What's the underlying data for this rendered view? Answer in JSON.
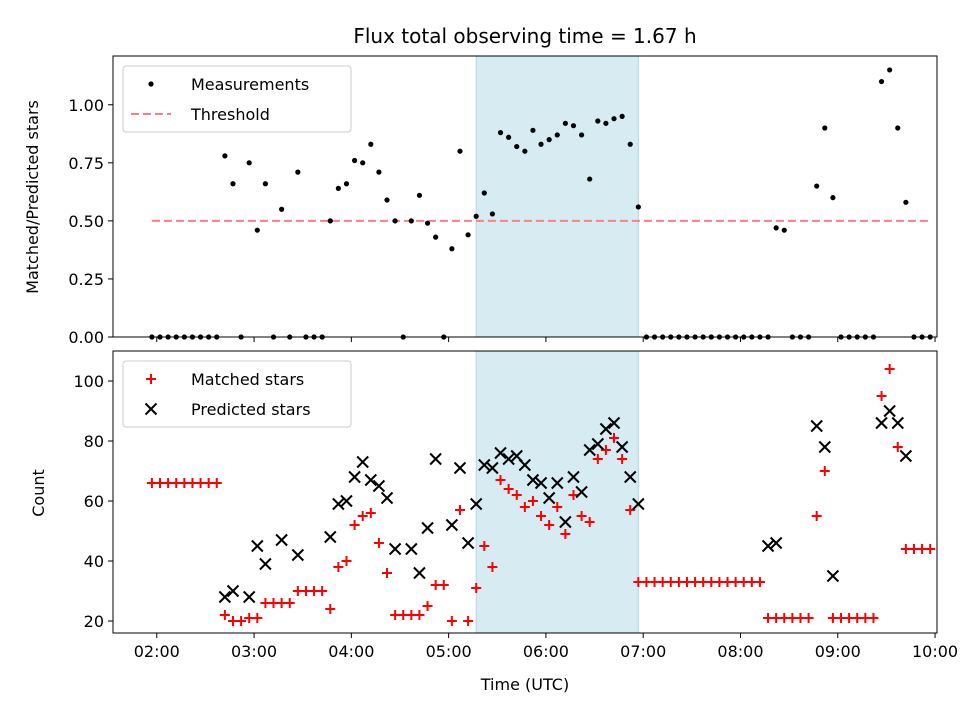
{
  "chart_data": [
    {
      "type": "scatter",
      "title": "Flux total observing time = 1.67 h",
      "xlabel": "",
      "ylabel": "Matched/Predicted stars",
      "ylim": [
        0,
        1.21
      ],
      "xlim_hours": [
        1.55,
        10.02
      ],
      "yticks": [
        "0.00",
        "0.25",
        "0.50",
        "0.75",
        "1.00"
      ],
      "highlight_span": {
        "start": "05:17",
        "end": "06:57",
        "color": "#add8e6"
      },
      "legend": {
        "placement": "upper left",
        "entries": [
          "Measurements",
          "Threshold"
        ]
      },
      "threshold": {
        "name": "Threshold",
        "y": 0.5,
        "x_start": "01:57",
        "x_end": "09:57",
        "color": "#ff7f7f",
        "style": "dashed"
      },
      "series": [
        {
          "name": "Measurements",
          "color": "#000000",
          "marker": "dot",
          "points": [
            [
              "01:57",
              0
            ],
            [
              "02:02",
              0
            ],
            [
              "02:07",
              0
            ],
            [
              "02:12",
              0
            ],
            [
              "02:17",
              0
            ],
            [
              "02:22",
              0
            ],
            [
              "02:27",
              0
            ],
            [
              "02:32",
              0
            ],
            [
              "02:37",
              0
            ],
            [
              "02:42",
              0.78
            ],
            [
              "02:47",
              0.66
            ],
            [
              "02:52",
              0
            ],
            [
              "02:57",
              0.75
            ],
            [
              "03:02",
              0.46
            ],
            [
              "03:07",
              0.66
            ],
            [
              "03:12",
              0
            ],
            [
              "03:17",
              0.55
            ],
            [
              "03:22",
              0
            ],
            [
              "03:27",
              0.71
            ],
            [
              "03:32",
              0
            ],
            [
              "03:37",
              0
            ],
            [
              "03:42",
              0
            ],
            [
              "03:47",
              0.5
            ],
            [
              "03:52",
              0.64
            ],
            [
              "03:57",
              0.66
            ],
            [
              "04:02",
              0.76
            ],
            [
              "04:07",
              0.75
            ],
            [
              "04:12",
              0.83
            ],
            [
              "04:17",
              0.71
            ],
            [
              "04:22",
              0.59
            ],
            [
              "04:27",
              0.5
            ],
            [
              "04:32",
              0
            ],
            [
              "04:37",
              0.5
            ],
            [
              "04:42",
              0.61
            ],
            [
              "04:47",
              0.49
            ],
            [
              "04:52",
              0.43
            ],
            [
              "04:57",
              0
            ],
            [
              "05:02",
              0.38
            ],
            [
              "05:07",
              0.8
            ],
            [
              "05:12",
              0.44
            ],
            [
              "05:17",
              0.52
            ],
            [
              "05:22",
              0.62
            ],
            [
              "05:27",
              0.53
            ],
            [
              "05:32",
              0.88
            ],
            [
              "05:37",
              0.86
            ],
            [
              "05:42",
              0.82
            ],
            [
              "05:47",
              0.8
            ],
            [
              "05:52",
              0.89
            ],
            [
              "05:57",
              0.83
            ],
            [
              "06:02",
              0.85
            ],
            [
              "06:07",
              0.87
            ],
            [
              "06:12",
              0.92
            ],
            [
              "06:17",
              0.91
            ],
            [
              "06:22",
              0.87
            ],
            [
              "06:27",
              0.68
            ],
            [
              "06:32",
              0.93
            ],
            [
              "06:37",
              0.92
            ],
            [
              "06:42",
              0.94
            ],
            [
              "06:47",
              0.95
            ],
            [
              "06:52",
              0.83
            ],
            [
              "06:57",
              0.56
            ],
            [
              "07:02",
              0
            ],
            [
              "07:07",
              0
            ],
            [
              "07:12",
              0
            ],
            [
              "07:17",
              0
            ],
            [
              "07:22",
              0
            ],
            [
              "07:27",
              0
            ],
            [
              "07:32",
              0
            ],
            [
              "07:37",
              0
            ],
            [
              "07:42",
              0
            ],
            [
              "07:47",
              0
            ],
            [
              "07:52",
              0
            ],
            [
              "07:57",
              0
            ],
            [
              "08:02",
              0
            ],
            [
              "08:07",
              0
            ],
            [
              "08:12",
              0
            ],
            [
              "08:17",
              0
            ],
            [
              "08:22",
              0.47
            ],
            [
              "08:27",
              0.46
            ],
            [
              "08:32",
              0
            ],
            [
              "08:37",
              0
            ],
            [
              "08:42",
              0
            ],
            [
              "08:47",
              0.65
            ],
            [
              "08:52",
              0.9
            ],
            [
              "08:57",
              0.6
            ],
            [
              "09:02",
              0
            ],
            [
              "09:07",
              0
            ],
            [
              "09:12",
              0
            ],
            [
              "09:17",
              0
            ],
            [
              "09:22",
              0
            ],
            [
              "09:27",
              1.1
            ],
            [
              "09:32",
              1.15
            ],
            [
              "09:37",
              0.9
            ],
            [
              "09:42",
              0.58
            ],
            [
              "09:47",
              0
            ],
            [
              "09:52",
              0
            ],
            [
              "09:57",
              0
            ]
          ]
        }
      ]
    },
    {
      "type": "scatter",
      "title": "",
      "xlabel": "Time (UTC)",
      "ylabel": "Count",
      "ylim": [
        16,
        110
      ],
      "xlim_hours": [
        1.55,
        10.02
      ],
      "yticks": [
        "20",
        "40",
        "60",
        "80",
        "100"
      ],
      "xticks": [
        "02:00",
        "03:00",
        "04:00",
        "05:00",
        "06:00",
        "07:00",
        "08:00",
        "09:00",
        "10:00"
      ],
      "highlight_span": {
        "start": "05:17",
        "end": "06:57",
        "color": "#add8e6"
      },
      "legend": {
        "placement": "upper left",
        "entries": [
          "Matched stars",
          "Predicted stars"
        ]
      },
      "series": [
        {
          "name": "Matched stars",
          "color": "#ff0000",
          "marker": "plus",
          "points": [
            [
              "01:57",
              66
            ],
            [
              "02:02",
              66
            ],
            [
              "02:07",
              66
            ],
            [
              "02:12",
              66
            ],
            [
              "02:17",
              66
            ],
            [
              "02:22",
              66
            ],
            [
              "02:27",
              66
            ],
            [
              "02:32",
              66
            ],
            [
              "02:37",
              66
            ],
            [
              "02:42",
              22
            ],
            [
              "02:47",
              20
            ],
            [
              "02:52",
              20
            ],
            [
              "02:57",
              21
            ],
            [
              "03:02",
              21
            ],
            [
              "03:07",
              26
            ],
            [
              "03:12",
              26
            ],
            [
              "03:17",
              26
            ],
            [
              "03:22",
              26
            ],
            [
              "03:27",
              30
            ],
            [
              "03:32",
              30
            ],
            [
              "03:37",
              30
            ],
            [
              "03:42",
              30
            ],
            [
              "03:47",
              24
            ],
            [
              "03:52",
              38
            ],
            [
              "03:57",
              40
            ],
            [
              "04:02",
              52
            ],
            [
              "04:07",
              55
            ],
            [
              "04:12",
              56
            ],
            [
              "04:17",
              46
            ],
            [
              "04:22",
              36
            ],
            [
              "04:27",
              22
            ],
            [
              "04:32",
              22
            ],
            [
              "04:37",
              22
            ],
            [
              "04:42",
              22
            ],
            [
              "04:47",
              25
            ],
            [
              "04:52",
              32
            ],
            [
              "04:57",
              32
            ],
            [
              "05:02",
              20
            ],
            [
              "05:07",
              57
            ],
            [
              "05:12",
              20
            ],
            [
              "05:17",
              31
            ],
            [
              "05:22",
              45
            ],
            [
              "05:27",
              38
            ],
            [
              "05:32",
              67
            ],
            [
              "05:37",
              64
            ],
            [
              "05:42",
              62
            ],
            [
              "05:47",
              58
            ],
            [
              "05:52",
              60
            ],
            [
              "05:57",
              55
            ],
            [
              "06:02",
              52
            ],
            [
              "06:07",
              58
            ],
            [
              "06:12",
              49
            ],
            [
              "06:17",
              62
            ],
            [
              "06:22",
              55
            ],
            [
              "06:27",
              53
            ],
            [
              "06:32",
              74
            ],
            [
              "06:37",
              77
            ],
            [
              "06:42",
              81
            ],
            [
              "06:47",
              74
            ],
            [
              "06:52",
              57
            ],
            [
              "06:57",
              33
            ],
            [
              "07:02",
              33
            ],
            [
              "07:07",
              33
            ],
            [
              "07:12",
              33
            ],
            [
              "07:17",
              33
            ],
            [
              "07:22",
              33
            ],
            [
              "07:27",
              33
            ],
            [
              "07:32",
              33
            ],
            [
              "07:37",
              33
            ],
            [
              "07:42",
              33
            ],
            [
              "07:47",
              33
            ],
            [
              "07:52",
              33
            ],
            [
              "07:57",
              33
            ],
            [
              "08:02",
              33
            ],
            [
              "08:07",
              33
            ],
            [
              "08:12",
              33
            ],
            [
              "08:17",
              21
            ],
            [
              "08:22",
              21
            ],
            [
              "08:27",
              21
            ],
            [
              "08:32",
              21
            ],
            [
              "08:37",
              21
            ],
            [
              "08:42",
              21
            ],
            [
              "08:47",
              55
            ],
            [
              "08:52",
              70
            ],
            [
              "08:57",
              21
            ],
            [
              "09:02",
              21
            ],
            [
              "09:07",
              21
            ],
            [
              "09:12",
              21
            ],
            [
              "09:17",
              21
            ],
            [
              "09:22",
              21
            ],
            [
              "09:27",
              95
            ],
            [
              "09:32",
              104
            ],
            [
              "09:37",
              78
            ],
            [
              "09:42",
              44
            ],
            [
              "09:47",
              44
            ],
            [
              "09:52",
              44
            ],
            [
              "09:57",
              44
            ]
          ]
        },
        {
          "name": "Predicted stars",
          "color": "#000000",
          "marker": "x",
          "points": [
            [
              "02:42",
              28
            ],
            [
              "02:47",
              30
            ],
            [
              "02:57",
              28
            ],
            [
              "03:02",
              45
            ],
            [
              "03:07",
              39
            ],
            [
              "03:17",
              47
            ],
            [
              "03:27",
              42
            ],
            [
              "03:47",
              48
            ],
            [
              "03:52",
              59
            ],
            [
              "03:57",
              60
            ],
            [
              "04:02",
              68
            ],
            [
              "04:07",
              73
            ],
            [
              "04:12",
              67
            ],
            [
              "04:17",
              65
            ],
            [
              "04:22",
              61
            ],
            [
              "04:27",
              44
            ],
            [
              "04:37",
              44
            ],
            [
              "04:42",
              36
            ],
            [
              "04:47",
              51
            ],
            [
              "04:52",
              74
            ],
            [
              "05:02",
              52
            ],
            [
              "05:07",
              71
            ],
            [
              "05:12",
              46
            ],
            [
              "05:17",
              59
            ],
            [
              "05:22",
              72
            ],
            [
              "05:27",
              71
            ],
            [
              "05:32",
              76
            ],
            [
              "05:37",
              74
            ],
            [
              "05:42",
              75
            ],
            [
              "05:47",
              72
            ],
            [
              "05:52",
              67
            ],
            [
              "05:57",
              66
            ],
            [
              "06:02",
              61
            ],
            [
              "06:07",
              66
            ],
            [
              "06:12",
              53
            ],
            [
              "06:17",
              68
            ],
            [
              "06:22",
              63
            ],
            [
              "06:27",
              77
            ],
            [
              "06:32",
              79
            ],
            [
              "06:37",
              84
            ],
            [
              "06:42",
              86
            ],
            [
              "06:47",
              78
            ],
            [
              "06:52",
              68
            ],
            [
              "06:57",
              59
            ],
            [
              "08:17",
              45
            ],
            [
              "08:22",
              46
            ],
            [
              "08:47",
              85
            ],
            [
              "08:52",
              78
            ],
            [
              "08:57",
              35
            ],
            [
              "09:27",
              86
            ],
            [
              "09:32",
              90
            ],
            [
              "09:37",
              86
            ],
            [
              "09:42",
              75
            ]
          ]
        }
      ]
    }
  ]
}
